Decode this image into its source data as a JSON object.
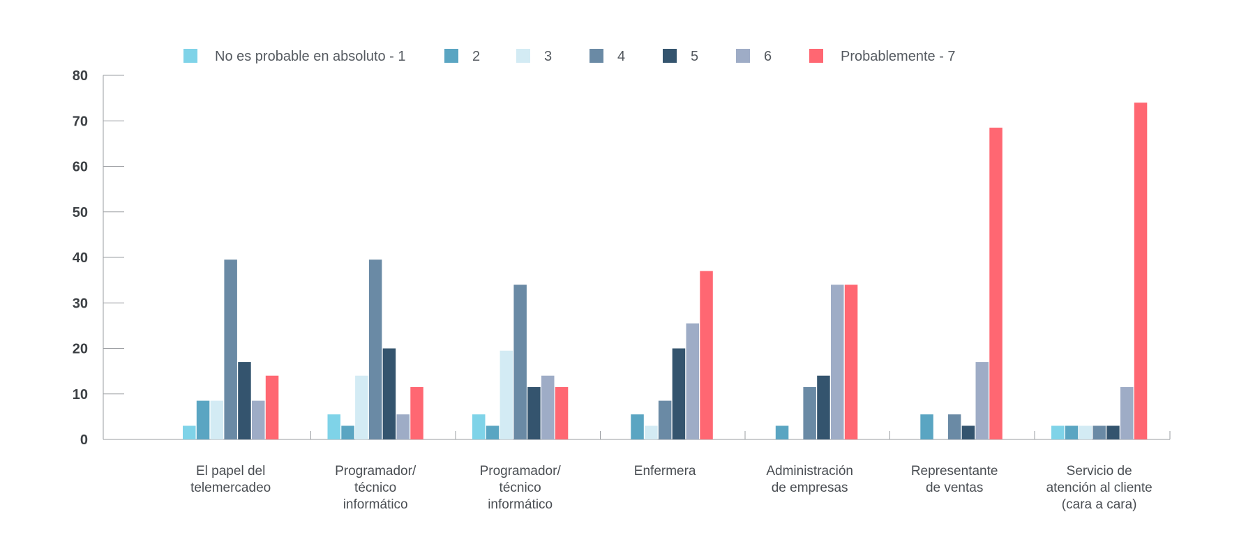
{
  "chart_data": {
    "type": "bar",
    "categories": [
      [
        "El papel del",
        "telemercadeo"
      ],
      [
        "Programador/",
        "técnico",
        "informático"
      ],
      [
        "Programador/",
        "técnico",
        "informático"
      ],
      [
        "Enfermera"
      ],
      [
        "Administración",
        "de empresas"
      ],
      [
        "Representante",
        "de ventas"
      ],
      [
        "Servicio de",
        "atención al cliente",
        "(cara a cara)"
      ]
    ],
    "series": [
      {
        "name": "No es probable en absoluto - 1",
        "color": "#7fd3e8",
        "values": [
          3,
          5.5,
          5.5,
          0,
          0,
          0,
          3
        ]
      },
      {
        "name": "2",
        "color": "#5aa5c2",
        "values": [
          8.5,
          3,
          3,
          5.5,
          3,
          5.5,
          3
        ]
      },
      {
        "name": "3",
        "color": "#d3ebf4",
        "values": [
          8.5,
          14,
          19.5,
          3,
          0,
          0,
          3
        ]
      },
      {
        "name": "4",
        "color": "#6a8aa5",
        "values": [
          39.5,
          39.5,
          34,
          8.5,
          11.5,
          5.5,
          3
        ]
      },
      {
        "name": "5",
        "color": "#34546e",
        "values": [
          17,
          20,
          11.5,
          20,
          14,
          3,
          3
        ]
      },
      {
        "name": "6",
        "color": "#9eacc6",
        "values": [
          8.5,
          5.5,
          14,
          25.5,
          34,
          17,
          11.5
        ]
      },
      {
        "name": "Probablemente - 7",
        "color": "#ff6772",
        "values": [
          14,
          11.5,
          11.5,
          37,
          34,
          68.5,
          74
        ]
      }
    ],
    "yticks": [
      "0",
      "10",
      "20",
      "30",
      "40",
      "50",
      "60",
      "70",
      "80"
    ],
    "ylim": [
      0,
      80
    ],
    "grid": false,
    "legend_position": "top"
  }
}
